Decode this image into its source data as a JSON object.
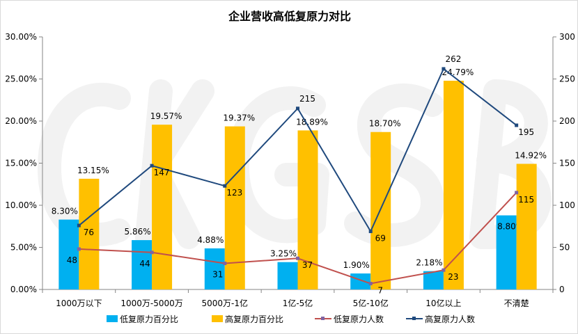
{
  "chart_data": {
    "type": "bar",
    "title": "企业营收高低复原力对比",
    "categories": [
      "1000万以下",
      "1000万-5000万",
      "5000万-1亿",
      "1亿-5亿",
      "5亿-10亿",
      "10亿以上",
      "不清楚"
    ],
    "series": [
      {
        "name": "低复原力百分比",
        "kind": "bar",
        "axis": "left",
        "color": "#00B0F0",
        "values": [
          8.3,
          5.86,
          4.88,
          3.25,
          1.9,
          2.18,
          8.8
        ],
        "labels": [
          "8.30%",
          "5.86%",
          "4.88%",
          "3.25%",
          "1.90%",
          "2.18%",
          "8.80%"
        ]
      },
      {
        "name": "高复原力百分比",
        "kind": "bar",
        "axis": "left",
        "color": "#FFC000",
        "values": [
          13.15,
          19.57,
          19.37,
          18.89,
          18.7,
          24.79,
          14.92
        ],
        "labels": [
          "13.15%",
          "19.57%",
          "19.37%",
          "18.89%",
          "18.70%",
          "24.79%",
          "14.92%"
        ]
      },
      {
        "name": "低复原力人数",
        "kind": "line",
        "axis": "right",
        "color": "#C0504D",
        "values": [
          48,
          44,
          31,
          37,
          7,
          23,
          115
        ]
      },
      {
        "name": "高复原力人数",
        "kind": "line",
        "axis": "right",
        "color": "#1F497D",
        "values": [
          76,
          147,
          123,
          215,
          69,
          262,
          195
        ]
      }
    ],
    "y_left": {
      "min": 0,
      "max": 30,
      "ticks": [
        "0.00%",
        "5.00%",
        "10.00%",
        "15.00%",
        "20.00%",
        "25.00%",
        "30.00%"
      ]
    },
    "y_right": {
      "min": 0,
      "max": 300,
      "ticks": [
        "0",
        "50",
        "100",
        "150",
        "200",
        "250",
        "300"
      ]
    },
    "legend_position": "bottom",
    "grid": false,
    "watermark": "CKGSB"
  }
}
